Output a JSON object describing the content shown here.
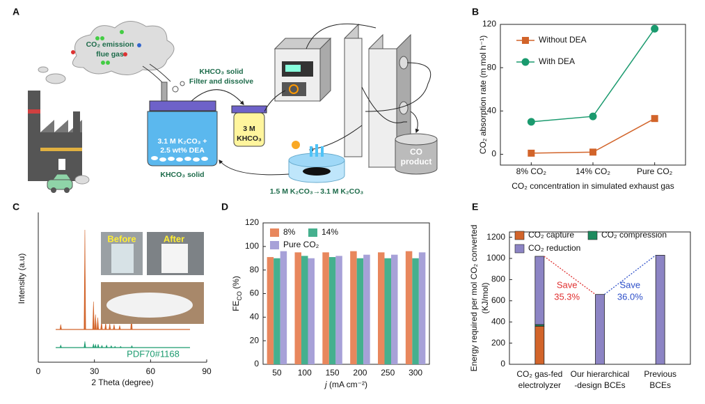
{
  "panel_labels": [
    "A",
    "B",
    "C",
    "D",
    "E"
  ],
  "diagram": {
    "flue_gas": [
      "CO₂ emission",
      "flue gas"
    ],
    "khco3_solid_top": "KHCO₃ solid",
    "filter": "Filter and dissolve",
    "absorber": [
      "3.1 M K₂CO₃ +",
      "2.5 wt% DEA"
    ],
    "khco3_solid_bottom": "KHCO₃ solid",
    "khco3_solution": [
      "3 M",
      "KHCO₃"
    ],
    "product": [
      "CO",
      "product"
    ],
    "regeneration": "1.5 M K₂CO₃→3.1 M K₂CO₃"
  },
  "chart_data": [
    {
      "type": "line",
      "categories": [
        "8% CO₂",
        "14% CO₂",
        "Pure CO₂"
      ],
      "series": [
        {
          "name": "Without DEA",
          "color": "#d2642a",
          "marker": "square",
          "values": [
            1,
            2,
            33
          ]
        },
        {
          "name": "With DEA",
          "color": "#1a9a6e",
          "marker": "circle",
          "values": [
            30,
            35,
            116
          ]
        }
      ],
      "ylim": [
        -10,
        120
      ],
      "yticks": [
        0,
        40,
        80,
        120
      ],
      "ylabel": "CO₂ absorption rate (m mol h⁻¹)",
      "xlabel": "CO₂ concentration in simulated exhaust gas",
      "legend": "upper left"
    },
    {
      "type": "spectrum",
      "xlabel": "2 Theta (degree)",
      "ylabel": "Intensity (a.u)",
      "xlim": [
        0,
        90
      ],
      "xticks": [
        0,
        30,
        60,
        90
      ],
      "series": [
        {
          "color": "#d2642a",
          "x": [
            12,
            24.9,
            29.5,
            30.6,
            31.8,
            33.8,
            36,
            38.2,
            40.5,
            43.5,
            49.8
          ],
          "values": [
            5,
            100,
            28,
            15,
            12,
            8,
            7,
            6,
            5,
            4,
            12
          ]
        },
        {
          "name": "PDF70#1168",
          "color": "#1a9a6e",
          "x": [
            12,
            24.9,
            29.5,
            30.6,
            32,
            34,
            36.5,
            39,
            41,
            44,
            50
          ],
          "values": [
            40,
            100,
            60,
            50,
            55,
            35,
            40,
            30,
            20,
            20,
            30
          ]
        }
      ],
      "photo_labels": [
        "Before",
        "After"
      ]
    },
    {
      "type": "bar",
      "categories": [
        50,
        100,
        150,
        200,
        250,
        300
      ],
      "series": [
        {
          "name": "8%",
          "color": "#e8875d",
          "values": [
            91,
            95,
            95,
            96,
            95,
            96
          ]
        },
        {
          "name": "14%",
          "color": "#45b08e",
          "values": [
            90,
            92,
            91,
            90,
            90,
            90
          ]
        },
        {
          "name": "Pure CO₂",
          "color": "#a7a1d8",
          "values": [
            96,
            90,
            92,
            93,
            93,
            95
          ]
        }
      ],
      "ylim": [
        0,
        120
      ],
      "yticks": [
        0,
        20,
        40,
        60,
        80,
        100,
        120
      ],
      "ylabel": [
        "FE",
        "CO",
        " (%)"
      ],
      "xlabel": [
        "j",
        " (mA cm⁻²)"
      ],
      "legend": "upper left"
    },
    {
      "type": "stacked_bar",
      "categories": [
        [
          "CO₂ gas-fed",
          "electrolyzer"
        ],
        [
          "Our hierarchical",
          "-design BCEs"
        ],
        [
          "Previous",
          "BCEs"
        ]
      ],
      "series": [
        {
          "name": "CO₂ capture",
          "color": "#d2642a",
          "values": [
            360,
            0,
            0
          ]
        },
        {
          "name": "CO₂ compression",
          "color": "#1d8a5e",
          "values": [
            15,
            0,
            0
          ]
        },
        {
          "name": "CO₂ reduction",
          "color": "#8c84c4",
          "values": [
            645,
            660,
            1030
          ]
        }
      ],
      "ylim": [
        0,
        1250
      ],
      "yticks": [
        0,
        200,
        400,
        600,
        800,
        1000,
        1200
      ],
      "ylabel": [
        "Energy required per mol CO₂ converted",
        "(KJ/mol)"
      ],
      "annotations": [
        {
          "text": [
            "Save",
            "35.3%"
          ],
          "color": "#e03030"
        },
        {
          "text": [
            "Save",
            "36.0%"
          ],
          "color": "#2d4fc9"
        }
      ],
      "legend": "upper left"
    }
  ]
}
